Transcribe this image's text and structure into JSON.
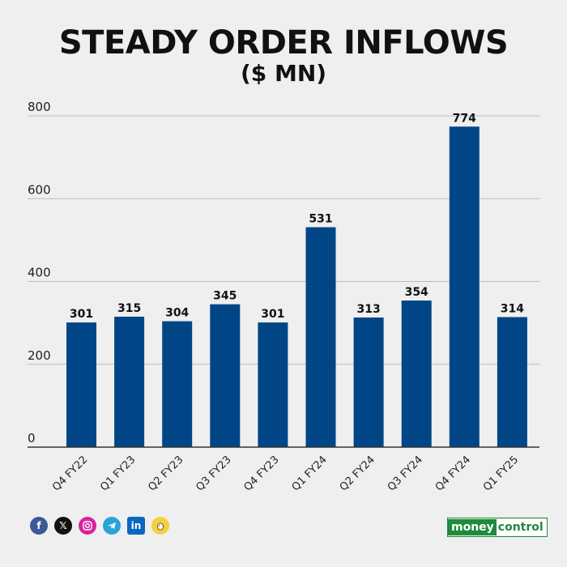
{
  "chart_data": {
    "type": "bar",
    "title": "STEADY ORDER INFLOWS",
    "subtitle": "($ MN)",
    "categories": [
      "Q4 FY22",
      "Q1 FY23",
      "Q2 FY23",
      "Q3 FY23",
      "Q4 FY23",
      "Q1 FY24",
      "Q2 FY24",
      "Q3 FY24",
      "Q4 FY24",
      "Q1 FY25"
    ],
    "values": [
      301,
      315,
      304,
      345,
      301,
      531,
      313,
      354,
      774,
      314
    ],
    "yticks": [
      0,
      200,
      400,
      600,
      800
    ],
    "ylim": [
      0,
      800
    ],
    "grid": true,
    "bar_color": "#004687"
  },
  "footer": {
    "social_icons": [
      "facebook-icon",
      "x-icon",
      "instagram-icon",
      "telegram-icon",
      "linkedin-icon",
      "koo-icon"
    ],
    "brand_part1": "money",
    "brand_part2": "control",
    "brand_color": "#1f8a3b"
  }
}
